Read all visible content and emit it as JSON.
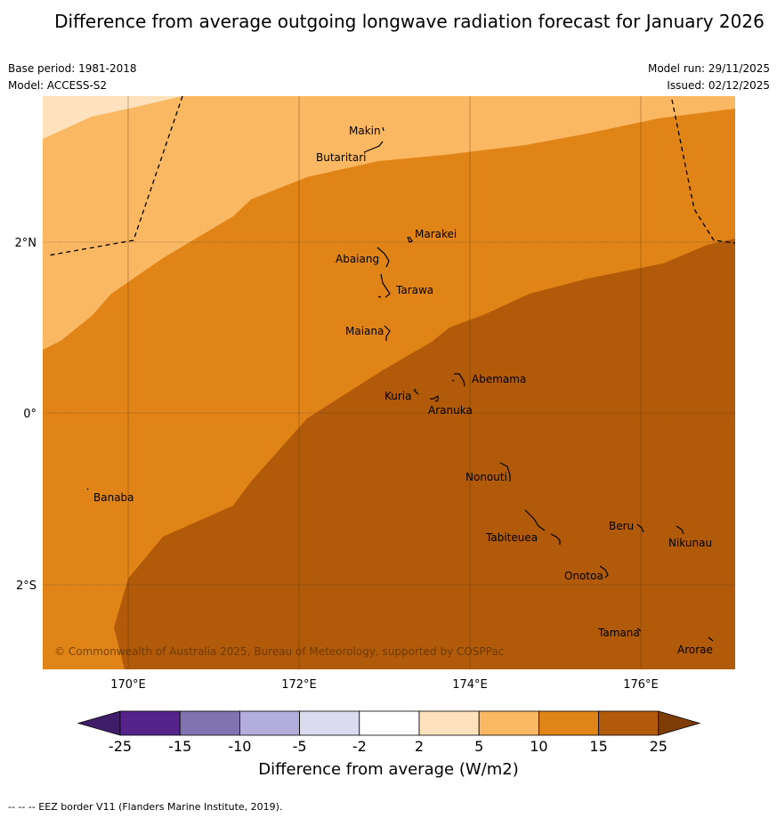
{
  "title": "Difference from average outgoing longwave radiation forecast for January 2026",
  "base_period": "Base period: 1981-2018",
  "model": "Model: ACCESS-S2",
  "model_run": "Model run: 29/11/2025",
  "issued": "Issued: 02/12/2025",
  "copyright": "© Commonwealth of Australia 2025, Bureau of Meteorology, supported by COSPPac",
  "axis": {
    "lon_labels": [
      "170°E",
      "172°E",
      "174°E",
      "176°E"
    ],
    "lat_labels": [
      "2°N",
      "0°",
      "2°S"
    ]
  },
  "places": [
    "Makin",
    "Butaritari",
    "Marakei",
    "Abaiang",
    "Tarawa",
    "Maiana",
    "Abemama",
    "Kuria",
    "Aranuka",
    "Nonouti",
    "Banaba",
    "Beru",
    "Nikunau",
    "Tabiteuea",
    "Onotoa",
    "Tamana",
    "Arorae"
  ],
  "colorbar": {
    "title": "Difference from average (W/m2)",
    "ticks": [
      "-25",
      "-15",
      "-10",
      "-5",
      "-2",
      "2",
      "5",
      "10",
      "15",
      "25"
    ],
    "colors": [
      "#3f1d6b",
      "#55248a",
      "#8173b0",
      "#b3addb",
      "#dadbee",
      "#ffffff",
      "#fde2bd",
      "#fbb862",
      "#e18417",
      "#b15a09",
      "#7d3d05"
    ]
  },
  "footer": "--  --  -- EEZ border V11 (Flanders Marine Institute, 2019)."
}
